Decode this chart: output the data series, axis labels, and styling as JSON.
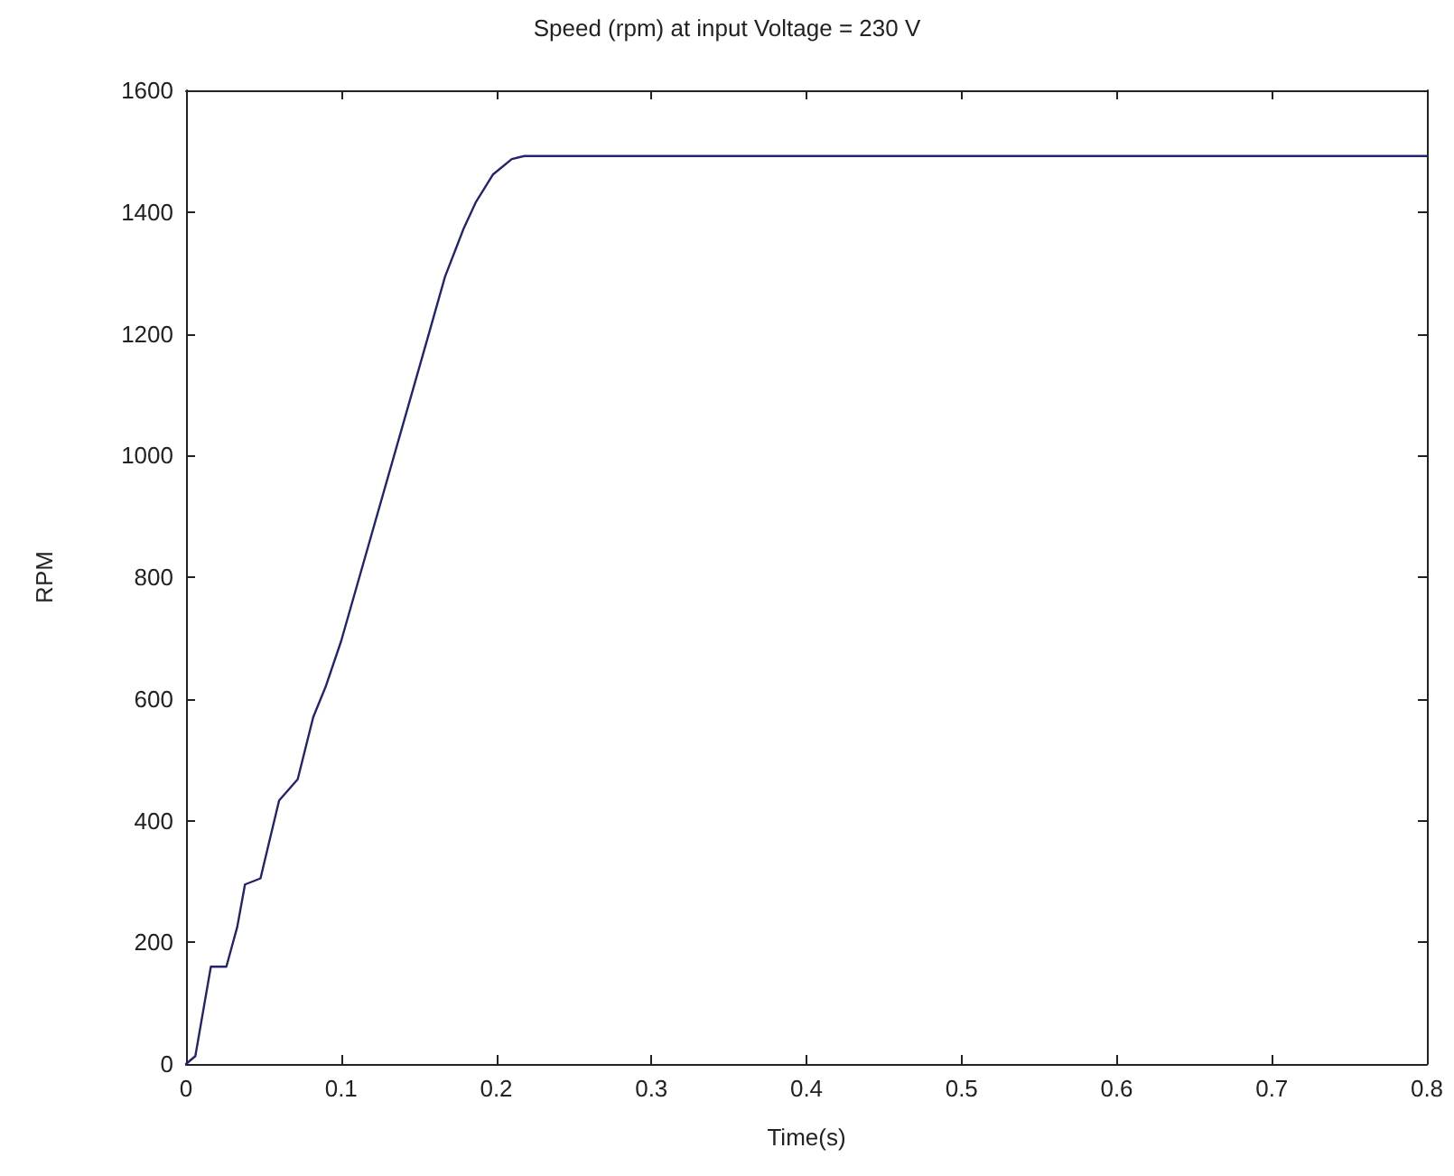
{
  "chart_data": {
    "type": "line",
    "title": "Speed (rpm) at input Voltage = 230 V",
    "xlabel": "Time(s)",
    "ylabel": "RPM",
    "x": [
      0,
      0.006,
      0.016,
      0.026,
      0.033,
      0.038,
      0.048,
      0.06,
      0.072,
      0.082,
      0.09,
      0.1,
      0.156,
      0.167,
      0.179,
      0.187,
      0.198,
      0.21,
      0.218,
      0.225,
      0.8
    ],
    "values": [
      0,
      13,
      160,
      160,
      225,
      295,
      305,
      433,
      468,
      570,
      620,
      695,
      1195,
      1294,
      1373,
      1417,
      1462,
      1487,
      1492,
      1492,
      1492
    ],
    "color": "#23236e",
    "line_style": "solid",
    "xlim": [
      0,
      0.8
    ],
    "xticks": [
      0,
      0.1,
      0.2,
      0.3,
      0.4,
      0.5,
      0.6,
      0.7,
      0.8
    ],
    "ylim": [
      0,
      1600
    ],
    "yticks": [
      0,
      200,
      400,
      600,
      800,
      1000,
      1200,
      1400,
      1600
    ]
  }
}
